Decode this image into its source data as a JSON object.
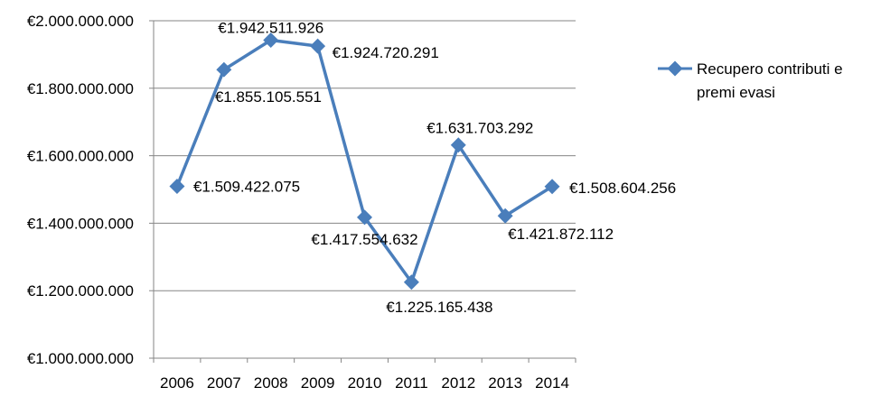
{
  "chart_data": {
    "type": "line",
    "categories": [
      "2006",
      "2007",
      "2008",
      "2009",
      "2010",
      "2011",
      "2012",
      "2013",
      "2014"
    ],
    "series": [
      {
        "name": "Recupero contributi e premi evasi",
        "values": [
          1509422075,
          1855105551,
          1942511926,
          1924720291,
          1417554632,
          1225165438,
          1631703292,
          1421872112,
          1508604256
        ],
        "data_labels": [
          "€1.509.422.075",
          "€1.855.105.551",
          "€1.942.511.926",
          "€1.924.720.291",
          "€1.417.554.632",
          "€1.225.165.438",
          "€1.631.703.292",
          "€1.421.872.112",
          "€1.508.604.256"
        ]
      }
    ],
    "y_ticks": [
      1000000000,
      1200000000,
      1400000000,
      1600000000,
      1800000000,
      2000000000
    ],
    "y_tick_labels": [
      "€1.000.000.000",
      "€1.200.000.000",
      "€1.400.000.000",
      "€1.600.000.000",
      "€1.800.000.000",
      "€2.000.000.000"
    ],
    "ylim": [
      1000000000,
      2000000000
    ],
    "grid": true,
    "legend": {
      "position": "right",
      "lines": [
        "Recupero contributi e",
        "premi evasi"
      ]
    },
    "colors": {
      "series": "#4a7ebb",
      "grid": "#868686",
      "axis": "#868686"
    }
  }
}
